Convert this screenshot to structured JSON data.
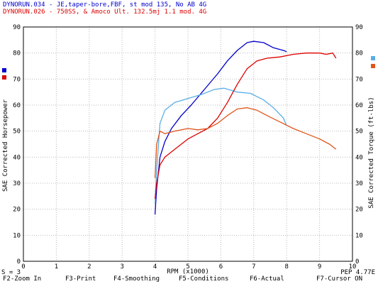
{
  "header": {
    "run1": "DYNORUN.034 - JE,taper-bore,FBF, st mod 135, No AB  4G",
    "run2": "DYNORUN.026 - 750SS, & Amoco Ult. 132.5mj 1.1 mod.  4G"
  },
  "colors": {
    "run1": "#0000cc",
    "run2": "#dd0000",
    "torque1": "#5aaee6",
    "torque2": "#e0541a",
    "grid": "#bbbbbb",
    "text": "#000000"
  },
  "status": {
    "left": "S = 3",
    "right": "PEP 4.77E"
  },
  "fkeys": [
    {
      "label": "F2-Zoom In"
    },
    {
      "label": "F3-Print"
    },
    {
      "label": "F4-Smoothing"
    },
    {
      "label": "F5-Conditions"
    },
    {
      "label": "F6-Actual"
    },
    {
      "label": "F7-Cursor ON"
    }
  ],
  "chart_data": {
    "type": "line",
    "xlabel": "RPM (x1000)",
    "ylabel_left": "SAE Corrected Horsepower",
    "ylabel_right": "SAE Corrected Torque (ft-lbs)",
    "xlim": [
      0,
      10
    ],
    "ylim": [
      0,
      90
    ],
    "x_ticks": [
      "0",
      "1",
      "2",
      "3",
      "4",
      "5",
      "6",
      "7",
      "8",
      "9",
      "10"
    ],
    "y_ticks": [
      "0",
      "10",
      "20",
      "30",
      "40",
      "50",
      "60",
      "70",
      "80",
      "90"
    ],
    "grid": true,
    "legend": "right side color markers",
    "series": [
      {
        "name": "DYNORUN.034",
        "kind": "horsepower",
        "color": "#0000cc",
        "x": [
          4.0,
          4.05,
          4.15,
          4.3,
          4.5,
          4.8,
          5.1,
          5.5,
          5.9,
          6.2,
          6.5,
          6.8,
          7.0,
          7.3,
          7.6,
          7.9,
          8.0
        ],
        "y": [
          18,
          28,
          40,
          46,
          51,
          56,
          60,
          66,
          72,
          77,
          81,
          84,
          84.5,
          84,
          82,
          81,
          80.5
        ]
      },
      {
        "name": "DYNORUN.034",
        "kind": "torque",
        "color": "#5aaee6",
        "x": [
          4.0,
          4.05,
          4.15,
          4.3,
          4.6,
          5.0,
          5.4,
          5.8,
          6.1,
          6.5,
          6.9,
          7.3,
          7.6,
          7.9,
          8.0
        ],
        "y": [
          22,
          35,
          53,
          58,
          61,
          62.5,
          64,
          66,
          66.5,
          65,
          64.5,
          62,
          59,
          55,
          52
        ]
      },
      {
        "name": "DYNORUN.026",
        "kind": "horsepower",
        "color": "#dd0000",
        "x": [
          4.0,
          4.05,
          4.15,
          4.3,
          4.6,
          5.0,
          5.3,
          5.6,
          5.9,
          6.2,
          6.5,
          6.8,
          7.1,
          7.4,
          7.8,
          8.2,
          8.6,
          9.0,
          9.2,
          9.4,
          9.5
        ],
        "y": [
          24,
          30,
          37,
          40,
          43,
          47,
          49,
          51,
          55,
          61,
          68,
          74,
          77,
          78,
          78.5,
          79.5,
          80,
          80,
          79.5,
          80,
          78
        ]
      },
      {
        "name": "DYNORUN.026",
        "kind": "torque",
        "color": "#e0541a",
        "x": [
          4.0,
          4.05,
          4.15,
          4.3,
          4.6,
          5.0,
          5.3,
          5.6,
          5.9,
          6.2,
          6.5,
          6.8,
          7.1,
          7.4,
          7.8,
          8.2,
          8.6,
          9.0,
          9.3,
          9.5
        ],
        "y": [
          32,
          45,
          50,
          49,
          50,
          51,
          50.5,
          51,
          53,
          56,
          58.5,
          59,
          58,
          56,
          53.5,
          51,
          49,
          47,
          45,
          43
        ]
      }
    ]
  }
}
